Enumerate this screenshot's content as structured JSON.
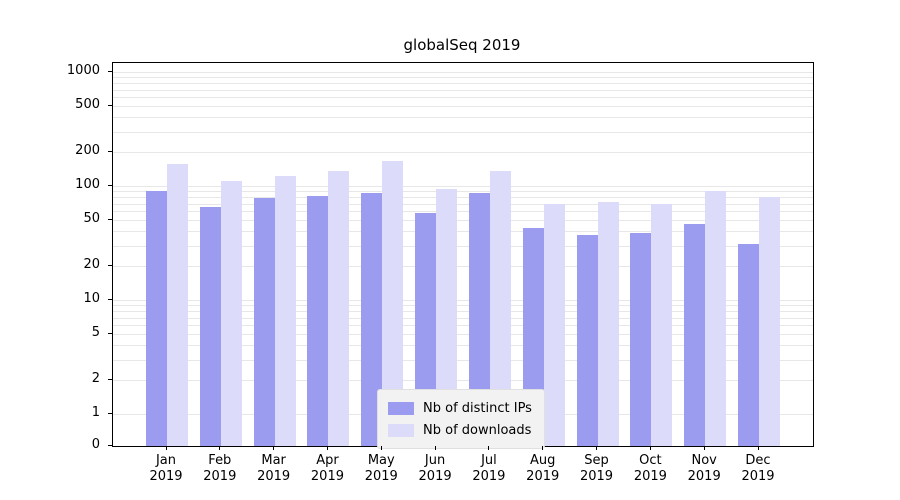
{
  "title": "globalSeq 2019",
  "chart_data": {
    "type": "bar",
    "title": "globalSeq 2019",
    "scale": "symlog",
    "grid": true,
    "legend_position": "bottom-center",
    "background_color": "#ffffff",
    "categories": [
      "Jan",
      "Feb",
      "Mar",
      "Apr",
      "May",
      "Jun",
      "Jul",
      "Aug",
      "Sep",
      "Oct",
      "Nov",
      "Dec"
    ],
    "year_label": "2019",
    "y_ticks": [
      0,
      1,
      2,
      5,
      10,
      20,
      50,
      100,
      200,
      500,
      1000
    ],
    "ylim": [
      0,
      1300
    ],
    "series": [
      {
        "name": "Nb of distinct IPs",
        "color": "#9b9bf0",
        "values": [
          90,
          65,
          78,
          82,
          86,
          58,
          86,
          43,
          37,
          39,
          46,
          31
        ]
      },
      {
        "name": "Nb of downloads",
        "color": "#dcdcfa",
        "values": [
          155,
          110,
          122,
          135,
          165,
          95,
          135,
          70,
          73,
          69,
          90,
          80
        ]
      }
    ]
  }
}
